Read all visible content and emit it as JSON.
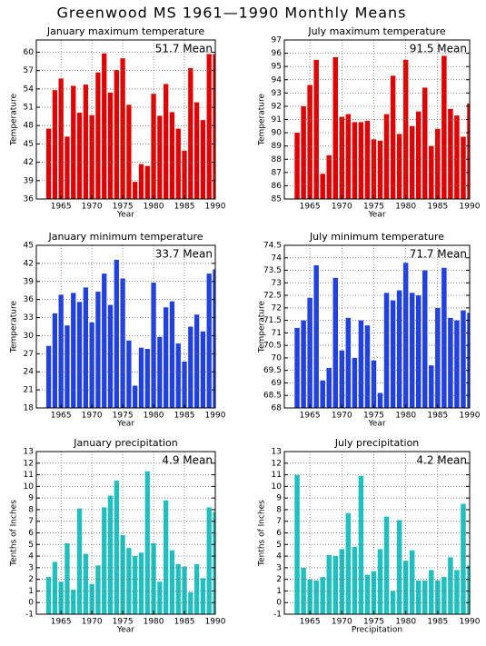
{
  "title": "Greenwood MS  1961—1990 Monthly Means",
  "chart_data": [
    {
      "type": "bar",
      "title": "January maximum temperature",
      "annotation": "51.7 Mean",
      "xlabel": "Year",
      "ylabel": "Temperature",
      "color": "#e00000",
      "x": [
        1963,
        1964,
        1965,
        1966,
        1967,
        1968,
        1969,
        1970,
        1971,
        1972,
        1973,
        1974,
        1975,
        1976,
        1977,
        1978,
        1979,
        1980,
        1981,
        1982,
        1983,
        1984,
        1985,
        1986,
        1987,
        1988,
        1989,
        1990
      ],
      "values": [
        47.5,
        53.8,
        55.7,
        46.2,
        54.5,
        50.1,
        54.7,
        49.7,
        56.7,
        59.8,
        53.4,
        57.1,
        59.0,
        51.4,
        38.8,
        41.7,
        41.4,
        53.2,
        49.6,
        54.8,
        50.2,
        47.5,
        43.9,
        57.4,
        51.8,
        48.9,
        59.7,
        59.7
      ],
      "xlim": [
        1961,
        1990
      ],
      "xticks": [
        1965,
        1970,
        1975,
        1980,
        1985,
        1990
      ],
      "ylim": [
        36,
        62
      ],
      "yticks": [
        36,
        39,
        42,
        45,
        48,
        51,
        54,
        57,
        60
      ],
      "grid": true
    },
    {
      "type": "bar",
      "title": "July maximum temperature",
      "annotation": "91.5 Mean",
      "xlabel": "Year",
      "ylabel": "Temperature",
      "color": "#e00000",
      "x": [
        1963,
        1964,
        1965,
        1966,
        1967,
        1968,
        1969,
        1970,
        1971,
        1972,
        1973,
        1974,
        1975,
        1976,
        1977,
        1978,
        1979,
        1980,
        1981,
        1982,
        1983,
        1984,
        1985,
        1986,
        1987,
        1988,
        1989,
        1990
      ],
      "values": [
        90.0,
        92.0,
        93.6,
        95.5,
        86.9,
        88.3,
        95.7,
        91.2,
        91.4,
        90.8,
        90.8,
        90.9,
        89.5,
        89.4,
        91.4,
        94.3,
        89.9,
        95.5,
        90.5,
        91.6,
        93.4,
        89.0,
        90.3,
        95.8,
        91.8,
        91.3,
        89.7,
        92.2
      ],
      "xlim": [
        1961,
        1990
      ],
      "xticks": [
        1965,
        1970,
        1975,
        1980,
        1985,
        1990
      ],
      "ylim": [
        85,
        97
      ],
      "yticks": [
        85,
        86,
        87,
        88,
        89,
        90,
        91,
        92,
        93,
        94,
        95,
        96,
        97
      ],
      "grid": true
    },
    {
      "type": "bar",
      "title": "January minimum temperature",
      "annotation": "33.7 Mean",
      "xlabel": "Year",
      "ylabel": "Temperature",
      "color": "#2040e0",
      "x": [
        1963,
        1964,
        1965,
        1966,
        1967,
        1968,
        1969,
        1970,
        1971,
        1972,
        1973,
        1974,
        1975,
        1976,
        1977,
        1978,
        1979,
        1980,
        1981,
        1982,
        1983,
        1984,
        1985,
        1986,
        1987,
        1988,
        1989,
        1990
      ],
      "values": [
        28.3,
        33.7,
        36.8,
        31.7,
        37.1,
        35.6,
        38.0,
        32.2,
        37.3,
        40.3,
        35.1,
        42.6,
        39.5,
        29.2,
        21.7,
        28.0,
        27.8,
        38.8,
        29.8,
        34.7,
        35.7,
        28.7,
        25.7,
        31.5,
        33.5,
        30.7,
        40.3,
        41.0
      ],
      "xlim": [
        1961,
        1990
      ],
      "xticks": [
        1965,
        1970,
        1975,
        1980,
        1985,
        1990
      ],
      "ylim": [
        18,
        45
      ],
      "yticks": [
        18,
        21,
        24,
        27,
        30,
        33,
        36,
        39,
        42,
        45
      ],
      "grid": true
    },
    {
      "type": "bar",
      "title": "July minimum temperature",
      "annotation": "71.7 Mean",
      "xlabel": "Year",
      "ylabel": "Temperature",
      "color": "#2040e0",
      "x": [
        1963,
        1964,
        1965,
        1966,
        1967,
        1968,
        1969,
        1970,
        1971,
        1972,
        1973,
        1974,
        1975,
        1976,
        1977,
        1978,
        1979,
        1980,
        1981,
        1982,
        1983,
        1984,
        1985,
        1986,
        1987,
        1988,
        1989,
        1990
      ],
      "values": [
        71.2,
        71.5,
        72.4,
        73.7,
        69.1,
        69.6,
        73.2,
        70.3,
        71.6,
        70.0,
        71.5,
        71.3,
        69.9,
        68.6,
        72.6,
        72.3,
        72.7,
        73.8,
        72.6,
        72.5,
        73.5,
        69.7,
        72.0,
        73.6,
        71.6,
        71.5,
        71.9,
        71.8
      ],
      "xlim": [
        1961,
        1990
      ],
      "xticks": [
        1965,
        1970,
        1975,
        1980,
        1985,
        1990
      ],
      "ylim": [
        68,
        74.5
      ],
      "yticks": [
        68,
        68.5,
        69,
        69.5,
        70,
        70.5,
        71,
        71.5,
        72,
        72.5,
        73,
        73.5,
        74,
        74.5
      ],
      "grid": true
    },
    {
      "type": "bar",
      "title": "January precipitation",
      "annotation": "4.9 Mean",
      "xlabel": "Year",
      "ylabel": "Tenths of Inches",
      "color": "#20c0c0",
      "x": [
        1963,
        1964,
        1965,
        1966,
        1967,
        1968,
        1969,
        1970,
        1971,
        1972,
        1973,
        1974,
        1975,
        1976,
        1977,
        1978,
        1979,
        1980,
        1981,
        1982,
        1983,
        1984,
        1985,
        1986,
        1987,
        1988,
        1989,
        1990
      ],
      "values": [
        2.2,
        3.5,
        1.8,
        5.1,
        1.1,
        8.1,
        4.2,
        1.6,
        3.2,
        8.2,
        9.2,
        10.5,
        5.8,
        4.7,
        4.0,
        4.3,
        11.3,
        5.1,
        1.8,
        8.8,
        4.5,
        3.3,
        3.1,
        0.9,
        3.3,
        2.1,
        8.2,
        7.8
      ],
      "xlim": [
        1961,
        1990
      ],
      "xticks": [
        1965,
        1970,
        1975,
        1980,
        1985,
        1990
      ],
      "ylim": [
        -1,
        13
      ],
      "yticks": [
        -1,
        0,
        1,
        2,
        3,
        4,
        5,
        6,
        7,
        8,
        9,
        10,
        11,
        12,
        13
      ],
      "grid": true
    },
    {
      "type": "bar",
      "title": "July precipitation",
      "annotation": "4.2 Mean",
      "xlabel": "Precipitation",
      "ylabel": "Tenths of Inches",
      "color": "#20c0c0",
      "x": [
        1963,
        1964,
        1965,
        1966,
        1967,
        1968,
        1969,
        1970,
        1971,
        1972,
        1973,
        1974,
        1975,
        1976,
        1977,
        1978,
        1979,
        1980,
        1981,
        1982,
        1983,
        1984,
        1985,
        1986,
        1987,
        1988,
        1989,
        1990
      ],
      "values": [
        11.0,
        3.0,
        2.0,
        1.9,
        2.2,
        4.1,
        4.0,
        4.6,
        7.7,
        4.8,
        10.9,
        2.4,
        2.7,
        4.6,
        7.4,
        1.0,
        7.1,
        3.6,
        4.5,
        1.9,
        1.9,
        2.8,
        1.9,
        2.2,
        3.9,
        2.8,
        8.5,
        3.2
      ],
      "xlim": [
        1961,
        1990
      ],
      "xticks": [
        1965,
        1970,
        1975,
        1980,
        1985,
        1990
      ],
      "ylim": [
        -1,
        13
      ],
      "yticks": [
        -1,
        0,
        1,
        2,
        3,
        4,
        5,
        6,
        7,
        8,
        9,
        10,
        11,
        12,
        13
      ],
      "grid": true
    }
  ]
}
